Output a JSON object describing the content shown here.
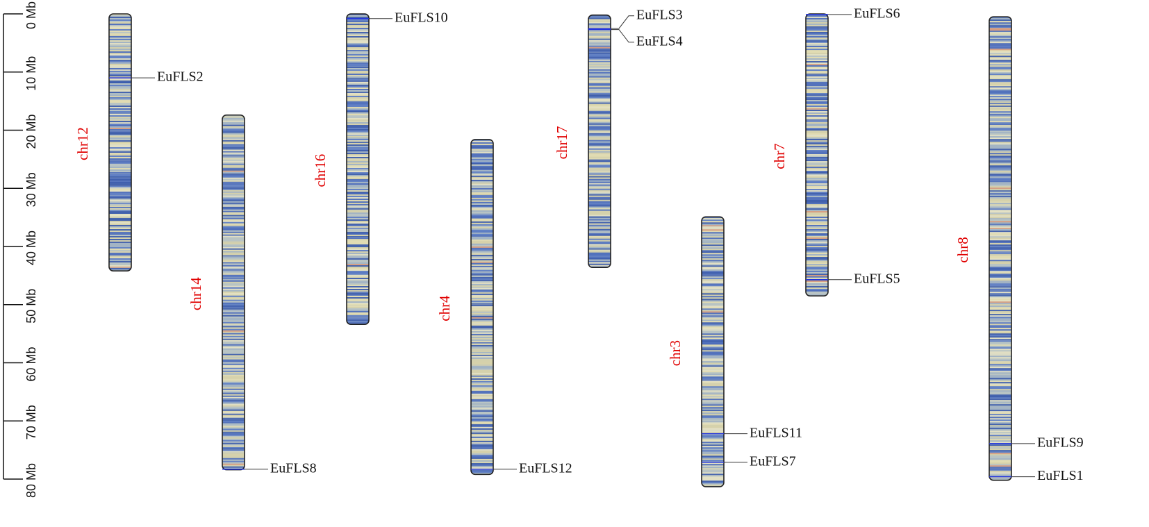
{
  "chart_data": {
    "type": "ideogram",
    "ylim": [
      0,
      80
    ],
    "yticks": [
      {
        "value": 0,
        "label": "0 Mb"
      },
      {
        "value": 10,
        "label": "10 Mb"
      },
      {
        "value": 20,
        "label": "20 Mb"
      },
      {
        "value": 30,
        "label": "30 Mb"
      },
      {
        "value": 40,
        "label": "40 Mb"
      },
      {
        "value": 50,
        "label": "50 Mb"
      },
      {
        "value": 60,
        "label": "60 Mb"
      },
      {
        "value": 70,
        "label": "70 Mb"
      },
      {
        "value": 80,
        "label": "80 Mb"
      }
    ],
    "chromosomes": [
      {
        "name": "chr12",
        "start": 0,
        "end": 44.2,
        "genes": [
          {
            "name": "EuFLS2",
            "position": 11.0
          }
        ]
      },
      {
        "name": "chr14",
        "start": 17.4,
        "end": 78.4,
        "genes": [
          {
            "name": "EuFLS8",
            "position": 78.3
          }
        ]
      },
      {
        "name": "chr16",
        "start": 0,
        "end": 53.4,
        "genes": [
          {
            "name": "EuFLS10",
            "position": 0.8
          }
        ]
      },
      {
        "name": "chr4",
        "start": 21.6,
        "end": 79.2,
        "genes": [
          {
            "name": "EuFLS12",
            "position": 78.3
          }
        ]
      },
      {
        "name": "chr17",
        "start": 0.2,
        "end": 43.6,
        "genes": [
          {
            "name": "EuFLS3",
            "position": 2.5
          },
          {
            "name": "EuFLS4",
            "position": 2.7
          }
        ]
      },
      {
        "name": "chr3",
        "start": 34.9,
        "end": 81.3,
        "genes": [
          {
            "name": "EuFLS11",
            "position": 72.2
          },
          {
            "name": "EuFLS7",
            "position": 77.1
          }
        ]
      },
      {
        "name": "chr7",
        "start": 0,
        "end": 48.5,
        "genes": [
          {
            "name": "EuFLS6",
            "position": 0.1
          },
          {
            "name": "EuFLS5",
            "position": 45.7
          }
        ]
      },
      {
        "name": "chr8",
        "start": 0.5,
        "end": 80.2,
        "genes": [
          {
            "name": "EuFLS9",
            "position": 73.9
          },
          {
            "name": "EuFLS1",
            "position": 79.6
          }
        ]
      }
    ]
  }
}
